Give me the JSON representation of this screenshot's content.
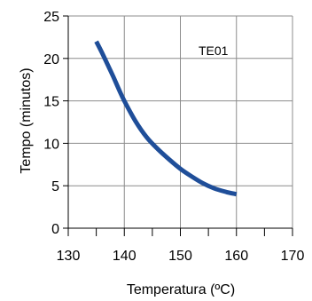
{
  "chart_data": {
    "type": "line",
    "title": "",
    "xlabel": "Temperatura (ºC)",
    "ylabel": "Tempo (minutos)",
    "xlim": [
      130,
      170
    ],
    "ylim": [
      0,
      25
    ],
    "xticks": [
      130,
      140,
      150,
      160,
      170
    ],
    "yticks": [
      0,
      5,
      10,
      15,
      20,
      25
    ],
    "grid": true,
    "annotation": "TE01",
    "series": [
      {
        "name": "",
        "color": "#1f4e99",
        "x": [
          135,
          136,
          137,
          138,
          139,
          140,
          142,
          144,
          146,
          148,
          150,
          152,
          154,
          156,
          158,
          160
        ],
        "y": [
          22.0,
          20.7,
          19.3,
          17.9,
          16.4,
          15.0,
          12.6,
          10.7,
          9.3,
          8.1,
          7.0,
          6.1,
          5.3,
          4.7,
          4.3,
          4.0
        ]
      }
    ]
  }
}
